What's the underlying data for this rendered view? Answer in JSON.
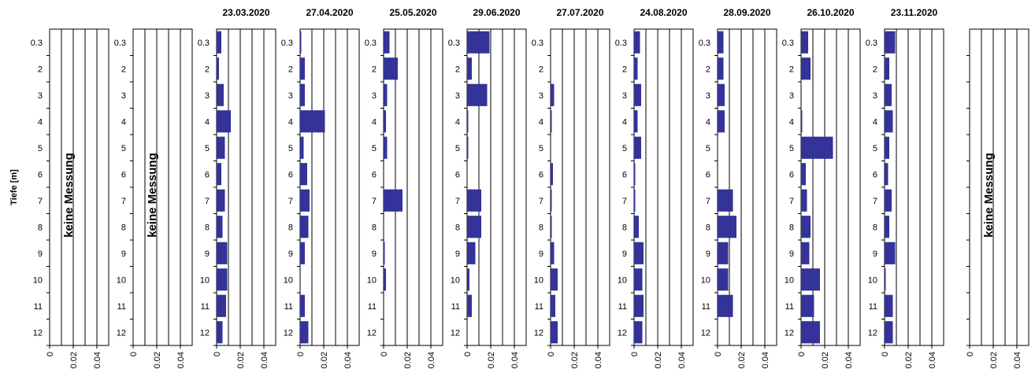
{
  "chart_data": {
    "type": "bar",
    "orientation": "horizontal",
    "ylabel": "Tiefe [m]",
    "depth_labels": [
      "0.3",
      "2",
      "3",
      "4",
      "5",
      "6",
      "7",
      "8",
      "9",
      "10",
      "11",
      "12"
    ],
    "xticks": [
      "0",
      "0.02",
      "0.04"
    ],
    "xlim": [
      0,
      0.05
    ],
    "bar_color": "#333399",
    "no_measurement_text": "keine Messung",
    "panels": [
      {
        "title": "",
        "no_measurement": true,
        "values": []
      },
      {
        "title": "",
        "no_measurement": true,
        "values": []
      },
      {
        "title": "23.03.2020",
        "no_measurement": false,
        "values": [
          0.004,
          0.002,
          0.006,
          0.012,
          0.007,
          0.004,
          0.007,
          0.005,
          0.009,
          0.009,
          0.008,
          0.005
        ]
      },
      {
        "title": "27.04.2020",
        "no_measurement": false,
        "values": [
          0.001,
          0.004,
          0.004,
          0.021,
          0.003,
          0.006,
          0.008,
          0.007,
          0.004,
          0.0,
          0.004,
          0.007
        ]
      },
      {
        "title": "25.05.2020",
        "no_measurement": false,
        "values": [
          0.005,
          0.012,
          0.003,
          0.002,
          0.003,
          0.0,
          0.016,
          0.0,
          0.001,
          0.002,
          0.0,
          0.0
        ]
      },
      {
        "title": "29.06.2020",
        "no_measurement": false,
        "values": [
          0.019,
          0.004,
          0.017,
          0.001,
          0.001,
          0.0,
          0.012,
          0.012,
          0.007,
          0.002,
          0.004,
          0.0
        ]
      },
      {
        "title": "27.07.2020",
        "no_measurement": false,
        "values": [
          0.0,
          0.0,
          0.003,
          0.001,
          0.0,
          0.002,
          0.001,
          0.001,
          0.003,
          0.006,
          0.004,
          0.006
        ]
      },
      {
        "title": "24.08.2020",
        "no_measurement": false,
        "values": [
          0.005,
          0.003,
          0.006,
          0.003,
          0.006,
          0.001,
          0.001,
          0.004,
          0.008,
          0.007,
          0.008,
          0.007
        ]
      },
      {
        "title": "28.09.2020",
        "no_measurement": false,
        "values": [
          0.005,
          0.005,
          0.006,
          0.006,
          0.0,
          0.0,
          0.013,
          0.016,
          0.009,
          0.009,
          0.013,
          0.0
        ]
      },
      {
        "title": "26.10.2020",
        "no_measurement": false,
        "values": [
          0.006,
          0.008,
          0.0,
          0.001,
          0.027,
          0.004,
          0.005,
          0.008,
          0.007,
          0.016,
          0.011,
          0.016
        ]
      },
      {
        "title": "23.11.2020",
        "no_measurement": false,
        "values": [
          0.009,
          0.004,
          0.006,
          0.007,
          0.004,
          0.003,
          0.006,
          0.004,
          0.009,
          0.001,
          0.007,
          0.007
        ]
      },
      {
        "title": "",
        "no_measurement": true,
        "values": []
      }
    ]
  }
}
